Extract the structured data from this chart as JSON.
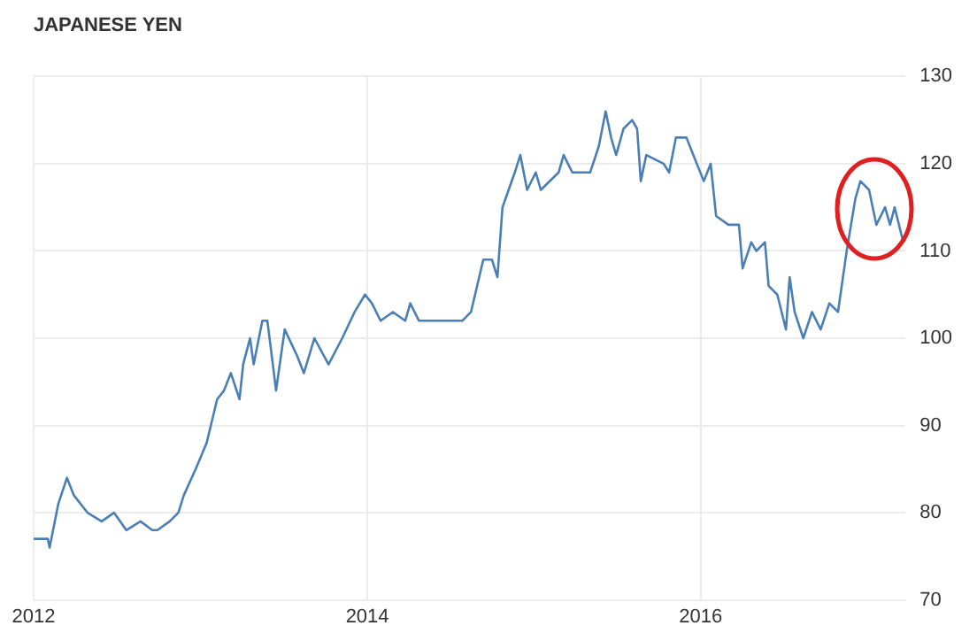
{
  "chart_data": {
    "type": "line",
    "title": "JAPANESE YEN",
    "x": [
      "2012-01-01",
      "2012-02-01",
      "2012-02-05",
      "2012-02-24",
      "2012-03-14",
      "2012-03-29",
      "2012-04-28",
      "2012-05-29",
      "2012-06-25",
      "2012-07-22",
      "2012-08-22",
      "2012-09-17",
      "2012-09-28",
      "2012-10-25",
      "2012-11-13",
      "2012-11-25",
      "2012-12-21",
      "2013-01-14",
      "2013-02-06",
      "2013-02-21",
      "2013-03-08",
      "2013-03-27",
      "2013-04-04",
      "2013-04-19",
      "2013-04-27",
      "2013-05-16",
      "2013-05-27",
      "2013-06-08",
      "2013-06-15",
      "2013-07-04",
      "2013-07-31",
      "2013-08-15",
      "2013-09-07",
      "2013-10-08",
      "2013-11-07",
      "2013-12-04",
      "2013-12-27",
      "2014-01-11",
      "2014-01-30",
      "2014-02-26",
      "2014-03-25",
      "2014-04-05",
      "2014-04-24",
      "2014-06-01",
      "2014-07-01",
      "2014-07-28",
      "2014-08-16",
      "2014-09-12",
      "2014-10-01",
      "2014-10-13",
      "2014-10-24",
      "2014-11-20",
      "2014-12-02",
      "2014-12-17",
      "2015-01-05",
      "2015-01-16",
      "2015-02-24",
      "2015-03-07",
      "2015-03-26",
      "2015-05-04",
      "2015-05-23",
      "2015-06-07",
      "2015-06-19",
      "2015-06-30",
      "2015-07-16",
      "2015-08-04",
      "2015-08-15",
      "2015-08-23",
      "2015-09-04",
      "2015-10-12",
      "2015-10-24",
      "2015-11-08",
      "2015-12-01",
      "2015-12-16",
      "2016-01-08",
      "2016-01-23",
      "2016-02-04",
      "2016-03-02",
      "2016-03-25",
      "2016-04-02",
      "2016-04-21",
      "2016-05-02",
      "2016-05-21",
      "2016-05-29",
      "2016-06-17",
      "2016-07-06",
      "2016-07-14",
      "2016-07-25",
      "2016-08-13",
      "2016-09-01",
      "2016-09-20",
      "2016-10-09",
      "2016-10-28",
      "2016-11-16",
      "2016-12-05",
      "2016-12-16",
      "2017-01-04",
      "2017-01-20",
      "2017-02-08",
      "2017-02-19",
      "2017-03-01",
      "2017-03-20"
    ],
    "series": [
      {
        "color": "#4a7fb5",
        "values": [
          77,
          77,
          76,
          81,
          84,
          82,
          80,
          79,
          80,
          78,
          79,
          78,
          78,
          79,
          80,
          82,
          85,
          88,
          93,
          94,
          96,
          93,
          97,
          100,
          97,
          102,
          102,
          97,
          94,
          101,
          98,
          96,
          100,
          97,
          100,
          103,
          105,
          104,
          102,
          103,
          102,
          104,
          102,
          102,
          102,
          102,
          103,
          109,
          109,
          107,
          115,
          119,
          121,
          117,
          119,
          117,
          119,
          121,
          119,
          119,
          122,
          126,
          123,
          121,
          124,
          125,
          124,
          118,
          121,
          120,
          119,
          123,
          123,
          121,
          118,
          120,
          114,
          113,
          113,
          108,
          111,
          110,
          111,
          106,
          105,
          101,
          107,
          103,
          100,
          103,
          101,
          104,
          103,
          110,
          116,
          118,
          117,
          113,
          115,
          113,
          115,
          111
        ]
      }
    ],
    "xlim": [
      "2012-01-01",
      "2017-03-25"
    ],
    "xticks": [
      "2012",
      "2014",
      "2016"
    ],
    "ylim": [
      70,
      130
    ],
    "yticks": [
      70,
      80,
      90,
      100,
      110,
      120,
      130
    ],
    "grid": true,
    "legend": false,
    "marker": "none",
    "line_style": "solid"
  }
}
